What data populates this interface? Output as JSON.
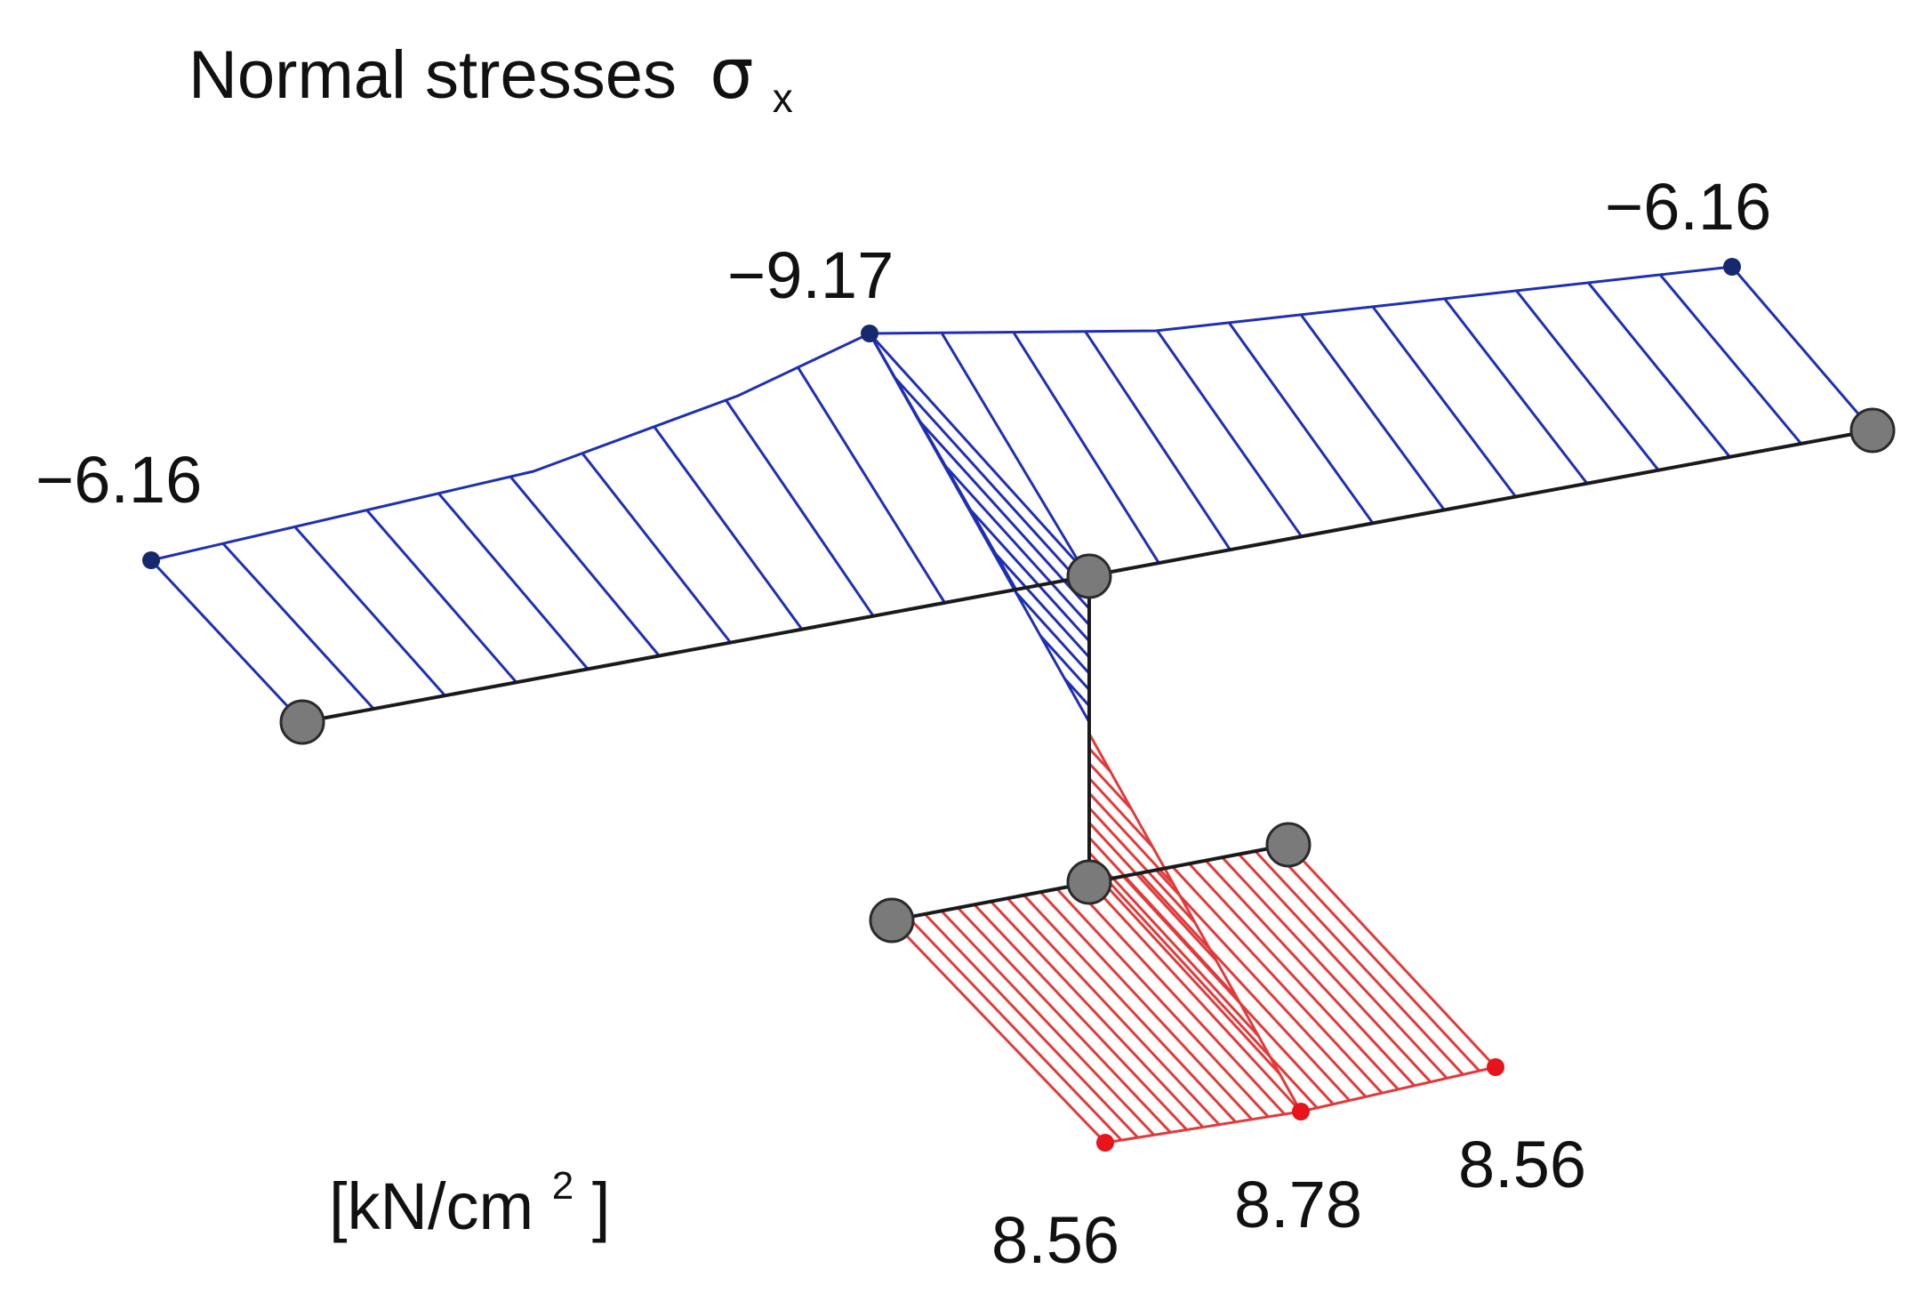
{
  "diagram": {
    "title": "Normal stresses",
    "symbol": "σ",
    "symbol_subscript": "x",
    "units": "[kN/cm",
    "units_superscript": "2",
    "units_close": "]",
    "colors": {
      "compression": "#1f2fb5",
      "tension": "#e23a3a",
      "member": "#1a1a1a",
      "node": "#7a7a7a"
    },
    "values": {
      "flange_left_tip": "−6.16",
      "web_top": "−9.17",
      "flange_right_tip": "−6.16",
      "bottom_left": "8.56",
      "bottom_center": "8.78",
      "bottom_right": "8.56"
    }
  }
}
